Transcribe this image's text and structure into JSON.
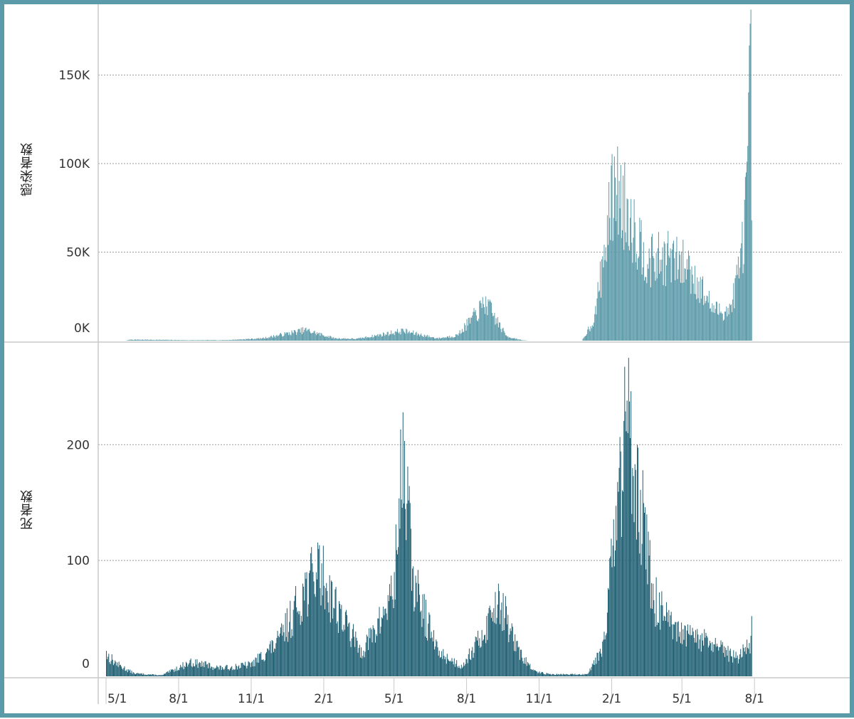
{
  "chart_data": [
    {
      "type": "bar",
      "ylabel": "感染者数",
      "ylim": [
        0,
        190000
      ],
      "yticks": [
        {
          "value": 0,
          "label": "0K"
        },
        {
          "value": 50000,
          "label": "50K"
        },
        {
          "value": 100000,
          "label": "100K"
        },
        {
          "value": 150000,
          "label": "150K"
        }
      ],
      "grid": true,
      "color": "#5b9aa9",
      "daily_from": "2020-05-01",
      "series_peaks": [
        {
          "date": "2020-05-01",
          "value": 0
        },
        {
          "date": "2020-05-25",
          "value": 0
        },
        {
          "date": "2020-06-01",
          "value": 700
        },
        {
          "date": "2020-07-15",
          "value": 500
        },
        {
          "date": "2020-08-15",
          "value": 300
        },
        {
          "date": "2020-10-01",
          "value": 400
        },
        {
          "date": "2020-11-15",
          "value": 1500
        },
        {
          "date": "2021-01-08",
          "value": 7000
        },
        {
          "date": "2021-02-15",
          "value": 1500
        },
        {
          "date": "2021-03-15",
          "value": 1200
        },
        {
          "date": "2021-05-12",
          "value": 6500
        },
        {
          "date": "2021-06-25",
          "value": 1500
        },
        {
          "date": "2021-07-20",
          "value": 3500
        },
        {
          "date": "2021-08-25",
          "value": 25000
        },
        {
          "date": "2021-09-20",
          "value": 3000
        },
        {
          "date": "2021-10-10",
          "value": 300
        },
        {
          "date": "2021-10-20",
          "value": 0
        },
        {
          "date": "2021-12-25",
          "value": 0
        },
        {
          "date": "2022-01-10",
          "value": 15000
        },
        {
          "date": "2022-02-04",
          "value": 104000
        },
        {
          "date": "2022-02-25",
          "value": 80000
        },
        {
          "date": "2022-03-20",
          "value": 52000
        },
        {
          "date": "2022-04-12",
          "value": 55000
        },
        {
          "date": "2022-05-10",
          "value": 48000
        },
        {
          "date": "2022-06-10",
          "value": 20000
        },
        {
          "date": "2022-07-01",
          "value": 20000
        },
        {
          "date": "2022-07-15",
          "value": 55000
        },
        {
          "date": "2022-07-23",
          "value": 110000
        },
        {
          "date": "2022-07-27",
          "value": 187000
        },
        {
          "date": "2022-07-28",
          "value": 68000
        }
      ]
    },
    {
      "type": "bar",
      "ylabel": "死者数",
      "ylim": [
        0,
        280
      ],
      "yticks": [
        {
          "value": 0,
          "label": "0"
        },
        {
          "value": 100,
          "label": "100"
        },
        {
          "value": 200,
          "label": "200"
        }
      ],
      "grid": true,
      "color": "#1f5f73",
      "x_tick_labels": [
        "5/1",
        "8/1",
        "11/1",
        "2/1",
        "5/1",
        "8/1",
        "11/1",
        "2/1",
        "5/1",
        "8/1"
      ],
      "x_tick_dates": [
        "2020-05-01",
        "2020-08-01",
        "2020-11-01",
        "2021-02-01",
        "2021-05-01",
        "2021-08-01",
        "2021-11-01",
        "2022-02-01",
        "2022-05-01",
        "2022-08-01"
      ],
      "daily_from": "2020-05-01",
      "series_peaks": [
        {
          "date": "2020-05-01",
          "value": 22
        },
        {
          "date": "2020-05-15",
          "value": 12
        },
        {
          "date": "2020-06-05",
          "value": 3
        },
        {
          "date": "2020-07-10",
          "value": 1
        },
        {
          "date": "2020-08-15",
          "value": 14
        },
        {
          "date": "2020-09-01",
          "value": 12
        },
        {
          "date": "2020-09-25",
          "value": 8
        },
        {
          "date": "2020-11-01",
          "value": 12
        },
        {
          "date": "2020-12-05",
          "value": 35
        },
        {
          "date": "2021-01-10",
          "value": 90
        },
        {
          "date": "2021-01-25",
          "value": 110
        },
        {
          "date": "2021-02-20",
          "value": 65
        },
        {
          "date": "2021-03-20",
          "value": 25
        },
        {
          "date": "2021-04-10",
          "value": 50
        },
        {
          "date": "2021-05-01",
          "value": 90
        },
        {
          "date": "2021-05-12",
          "value": 228
        },
        {
          "date": "2021-05-25",
          "value": 95
        },
        {
          "date": "2021-06-25",
          "value": 25
        },
        {
          "date": "2021-07-25",
          "value": 10
        },
        {
          "date": "2021-08-20",
          "value": 40
        },
        {
          "date": "2021-09-10",
          "value": 80
        },
        {
          "date": "2021-10-05",
          "value": 25
        },
        {
          "date": "2021-10-25",
          "value": 5
        },
        {
          "date": "2021-11-15",
          "value": 2
        },
        {
          "date": "2021-12-31",
          "value": 2
        },
        {
          "date": "2022-01-20",
          "value": 30
        },
        {
          "date": "2022-02-10",
          "value": 180
        },
        {
          "date": "2022-02-22",
          "value": 275
        },
        {
          "date": "2022-03-05",
          "value": 200
        },
        {
          "date": "2022-03-25",
          "value": 80
        },
        {
          "date": "2022-04-20",
          "value": 45
        },
        {
          "date": "2022-06-01",
          "value": 35
        },
        {
          "date": "2022-07-10",
          "value": 18
        },
        {
          "date": "2022-07-27",
          "value": 35
        },
        {
          "date": "2022-07-28",
          "value": 52
        }
      ]
    }
  ]
}
